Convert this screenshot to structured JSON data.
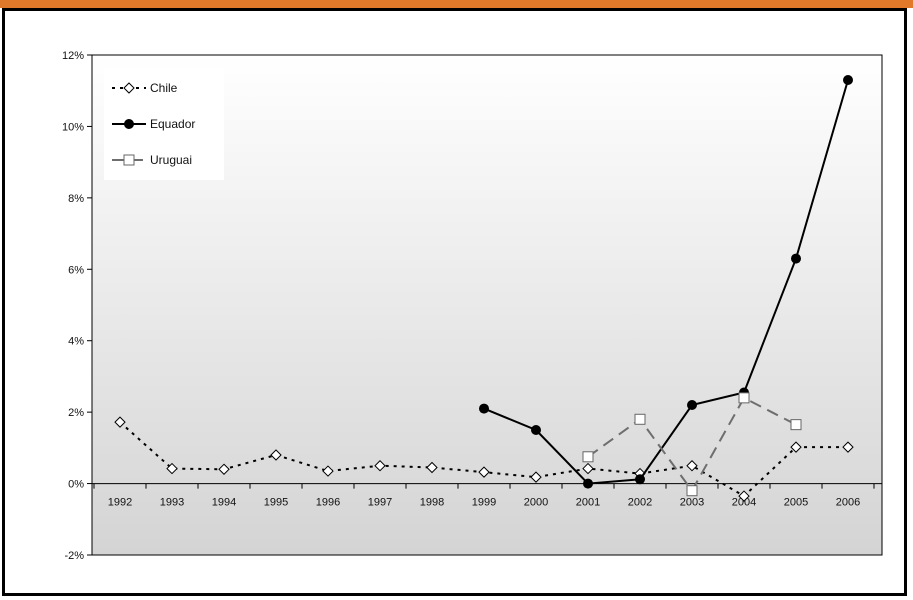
{
  "chart_data": {
    "type": "line",
    "title": "",
    "xlabel": "",
    "ylabel": "",
    "categories": [
      "1992",
      "1993",
      "1994",
      "1995",
      "1996",
      "1997",
      "1998",
      "1999",
      "2000",
      "2001",
      "2002",
      "2003",
      "2004",
      "2005",
      "2006"
    ],
    "yticks": [
      "12%",
      "10%",
      "8%",
      "6%",
      "4%",
      "2%",
      "0%",
      "-2%"
    ],
    "ylim": [
      -2,
      12
    ],
    "legend_position": "top-left",
    "series": [
      {
        "name": "Chile",
        "color": "#000000",
        "dash": "dotted",
        "marker": "diamond-open",
        "values": [
          1.72,
          0.42,
          0.4,
          0.8,
          0.35,
          0.5,
          0.45,
          0.32,
          0.18,
          0.42,
          0.28,
          0.5,
          -0.35,
          1.02,
          1.02
        ]
      },
      {
        "name": "Equador",
        "color": "#000000",
        "dash": "solid",
        "marker": "circle-filled",
        "values": [
          null,
          null,
          null,
          null,
          null,
          null,
          null,
          2.1,
          1.5,
          0.0,
          0.12,
          2.2,
          2.55,
          6.3,
          11.3
        ]
      },
      {
        "name": "Uruguai",
        "color": "#6e6e6e",
        "dash": "dashed",
        "marker": "square-open",
        "values": [
          null,
          null,
          null,
          null,
          null,
          null,
          null,
          null,
          null,
          0.75,
          1.8,
          -0.2,
          2.4,
          1.65,
          null
        ]
      }
    ]
  }
}
